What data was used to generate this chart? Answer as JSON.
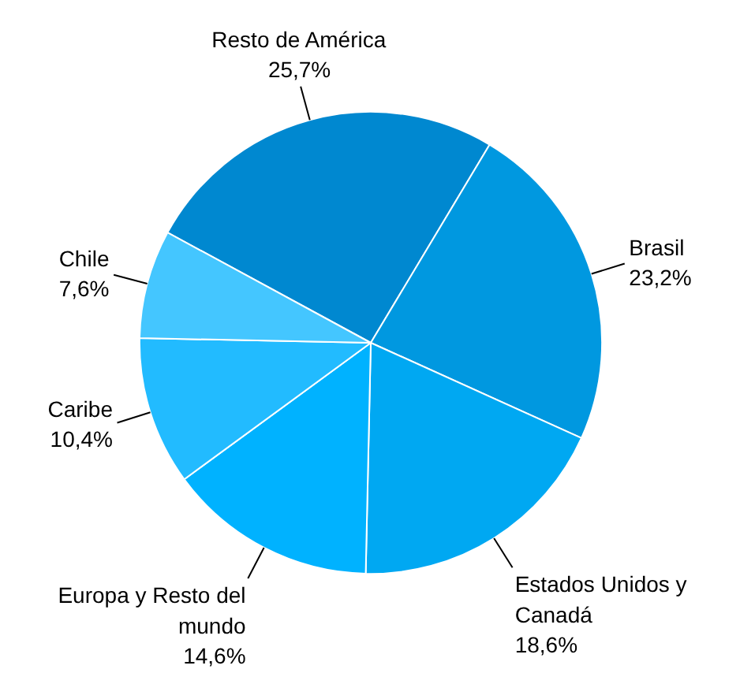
{
  "chart_data": {
    "type": "pie",
    "categories": [
      "Resto de América",
      "Brasil",
      "Estados Unidos y Canadá",
      "Europa y Resto del mundo",
      "Caribe",
      "Chile"
    ],
    "values": [
      25.7,
      23.2,
      18.6,
      14.6,
      10.4,
      7.6
    ],
    "value_labels": [
      "25,7%",
      "23,2%",
      "18,6%",
      "14,6%",
      "10,4%",
      "7,6%"
    ],
    "colors": [
      "#0088d0",
      "#0098e0",
      "#00a8f2",
      "#00b2ff",
      "#22bbff",
      "#44c6ff"
    ]
  }
}
